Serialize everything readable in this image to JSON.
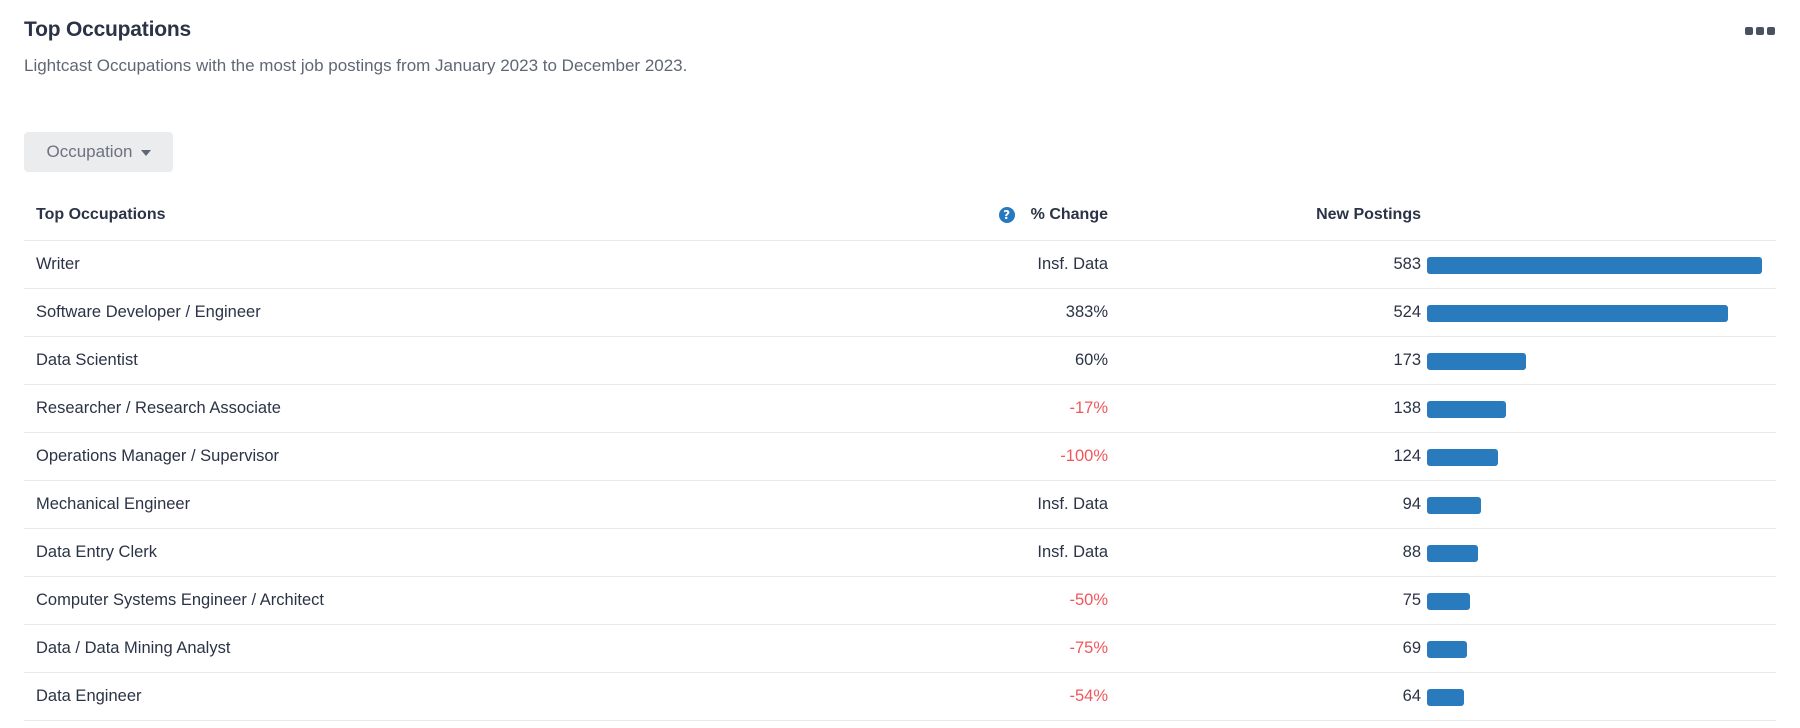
{
  "header": {
    "title": "Top Occupations",
    "subtitle": "Lightcast Occupations with the most job postings from January 2023 to December 2023.",
    "more_icon": "more-dots-icon"
  },
  "filter": {
    "dropdown_label": "Occupation",
    "caret_icon": "caret-down-icon"
  },
  "table": {
    "columns": {
      "occupation": "Top Occupations",
      "change": "% Change",
      "postings": "New Postings",
      "help_icon": "help-circle-icon"
    },
    "rows": [
      {
        "occupation": "Writer",
        "change": "Insf. Data",
        "change_negative": false,
        "postings": "583",
        "postings_value": 583
      },
      {
        "occupation": "Software Developer / Engineer",
        "change": "383%",
        "change_negative": false,
        "postings": "524",
        "postings_value": 524
      },
      {
        "occupation": "Data Scientist",
        "change": "60%",
        "change_negative": false,
        "postings": "173",
        "postings_value": 173
      },
      {
        "occupation": "Researcher / Research Associate",
        "change": "-17%",
        "change_negative": true,
        "postings": "138",
        "postings_value": 138
      },
      {
        "occupation": "Operations Manager / Supervisor",
        "change": "-100%",
        "change_negative": true,
        "postings": "124",
        "postings_value": 124
      },
      {
        "occupation": "Mechanical Engineer",
        "change": "Insf. Data",
        "change_negative": false,
        "postings": "94",
        "postings_value": 94
      },
      {
        "occupation": "Data Entry Clerk",
        "change": "Insf. Data",
        "change_negative": false,
        "postings": "88",
        "postings_value": 88
      },
      {
        "occupation": "Computer Systems Engineer / Architect",
        "change": "-50%",
        "change_negative": true,
        "postings": "75",
        "postings_value": 75
      },
      {
        "occupation": "Data / Data Mining Analyst",
        "change": "-75%",
        "change_negative": true,
        "postings": "69",
        "postings_value": 69
      },
      {
        "occupation": "Data Engineer",
        "change": "-54%",
        "change_negative": true,
        "postings": "64",
        "postings_value": 64
      }
    ]
  },
  "colors": {
    "bar": "#2a7bbd",
    "negative": "#f0565c",
    "help_icon": "#2678c0"
  }
}
